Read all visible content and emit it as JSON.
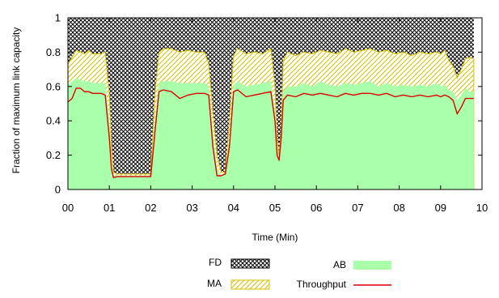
{
  "chart_data": {
    "type": "area",
    "xlabel": "Time (Min)",
    "ylabel": "Fraction of maximum link capacity",
    "xlim": [
      0,
      10
    ],
    "ylim": [
      0,
      1
    ],
    "x_tick_values": [
      0,
      1,
      2,
      3,
      4,
      5,
      6,
      7,
      8,
      9,
      10
    ],
    "x_tick_labels": [
      "00",
      "01",
      "02",
      "03",
      "04",
      "05",
      "06",
      "07",
      "08",
      "09",
      "10"
    ],
    "y_tick_values": [
      0,
      0.2,
      0.4,
      0.6,
      0.8,
      1
    ],
    "y_tick_labels": [
      "0",
      "0.2",
      "0.4",
      "0.6",
      "0.8",
      "1"
    ],
    "grid": false,
    "legend_position": "bottom",
    "x": [
      0,
      0.1,
      0.2,
      0.3,
      0.4,
      0.5,
      0.6,
      0.7,
      0.8,
      0.9,
      1.0,
      1.05,
      1.1,
      1.2,
      1.4,
      1.6,
      1.8,
      2.0,
      2.1,
      2.2,
      2.3,
      2.5,
      2.7,
      2.9,
      3.1,
      3.3,
      3.4,
      3.5,
      3.6,
      3.7,
      3.8,
      3.9,
      4.0,
      4.1,
      4.3,
      4.5,
      4.7,
      4.9,
      5.0,
      5.05,
      5.1,
      5.15,
      5.2,
      5.3,
      5.5,
      5.7,
      5.9,
      6.1,
      6.3,
      6.5,
      6.7,
      6.9,
      7.1,
      7.3,
      7.5,
      7.7,
      7.9,
      8.1,
      8.3,
      8.5,
      8.7,
      8.9,
      9.0,
      9.1,
      9.2,
      9.3,
      9.4,
      9.5,
      9.6,
      9.7,
      9.8
    ],
    "series": [
      {
        "name": "FD",
        "color": "#000000",
        "pattern": "crosshatch",
        "values": [
          1,
          1,
          1,
          1,
          1,
          1,
          1,
          1,
          1,
          1,
          1,
          1,
          1,
          1,
          1,
          1,
          1,
          1,
          1,
          1,
          1,
          1,
          1,
          1,
          1,
          1,
          1,
          1,
          1,
          1,
          1,
          1,
          1,
          1,
          1,
          1,
          1,
          1,
          1,
          1,
          1,
          1,
          1,
          1,
          1,
          1,
          1,
          1,
          1,
          1,
          1,
          1,
          1,
          1,
          1,
          1,
          1,
          1,
          1,
          1,
          1,
          1,
          1,
          1,
          1,
          1,
          1,
          1,
          1,
          1,
          1
        ]
      },
      {
        "name": "MA",
        "color": "#d4c000",
        "pattern": "diagonal",
        "values": [
          0.73,
          0.77,
          0.81,
          0.8,
          0.79,
          0.81,
          0.79,
          0.79,
          0.79,
          0.8,
          0.55,
          0.25,
          0.1,
          0.09,
          0.09,
          0.09,
          0.09,
          0.09,
          0.55,
          0.8,
          0.82,
          0.82,
          0.8,
          0.81,
          0.8,
          0.8,
          0.73,
          0.45,
          0.2,
          0.1,
          0.1,
          0.4,
          0.78,
          0.82,
          0.79,
          0.8,
          0.79,
          0.82,
          0.6,
          0.3,
          0.2,
          0.35,
          0.75,
          0.8,
          0.78,
          0.8,
          0.79,
          0.81,
          0.8,
          0.79,
          0.82,
          0.8,
          0.81,
          0.82,
          0.8,
          0.81,
          0.79,
          0.8,
          0.78,
          0.8,
          0.79,
          0.8,
          0.79,
          0.81,
          0.75,
          0.72,
          0.65,
          0.7,
          0.76,
          0.77,
          0.76
        ]
      },
      {
        "name": "AB",
        "color": "#aaffaa",
        "pattern": "solid",
        "values": [
          0.61,
          0.63,
          0.65,
          0.64,
          0.63,
          0.63,
          0.62,
          0.62,
          0.62,
          0.62,
          0.4,
          0.15,
          0.08,
          0.08,
          0.08,
          0.08,
          0.08,
          0.08,
          0.4,
          0.62,
          0.63,
          0.63,
          0.62,
          0.62,
          0.62,
          0.62,
          0.6,
          0.35,
          0.12,
          0.08,
          0.09,
          0.3,
          0.61,
          0.63,
          0.6,
          0.61,
          0.62,
          0.63,
          0.45,
          0.25,
          0.18,
          0.3,
          0.57,
          0.6,
          0.6,
          0.62,
          0.6,
          0.63,
          0.61,
          0.6,
          0.62,
          0.61,
          0.62,
          0.63,
          0.6,
          0.62,
          0.6,
          0.61,
          0.6,
          0.61,
          0.6,
          0.62,
          0.6,
          0.61,
          0.58,
          0.57,
          0.52,
          0.55,
          0.59,
          0.57,
          0.57
        ]
      },
      {
        "name": "Throughput",
        "color": "#dd0000",
        "pattern": "line",
        "values": [
          0.51,
          0.53,
          0.59,
          0.59,
          0.57,
          0.57,
          0.56,
          0.56,
          0.56,
          0.55,
          0.3,
          0.12,
          0.07,
          0.075,
          0.075,
          0.075,
          0.075,
          0.075,
          0.33,
          0.57,
          0.58,
          0.57,
          0.53,
          0.55,
          0.56,
          0.56,
          0.55,
          0.25,
          0.08,
          0.08,
          0.09,
          0.25,
          0.57,
          0.58,
          0.54,
          0.55,
          0.56,
          0.57,
          0.4,
          0.2,
          0.17,
          0.3,
          0.52,
          0.55,
          0.54,
          0.56,
          0.55,
          0.56,
          0.55,
          0.54,
          0.56,
          0.55,
          0.56,
          0.56,
          0.55,
          0.56,
          0.54,
          0.55,
          0.54,
          0.55,
          0.54,
          0.55,
          0.54,
          0.55,
          0.54,
          0.52,
          0.44,
          0.48,
          0.53,
          0.53,
          0.53
        ]
      }
    ],
    "legend": [
      {
        "name": "FD",
        "swatch": "crosshatch"
      },
      {
        "name": "AB",
        "swatch": "solid"
      },
      {
        "name": "MA",
        "swatch": "diagonal"
      },
      {
        "name": "Throughput",
        "swatch": "line"
      }
    ]
  }
}
